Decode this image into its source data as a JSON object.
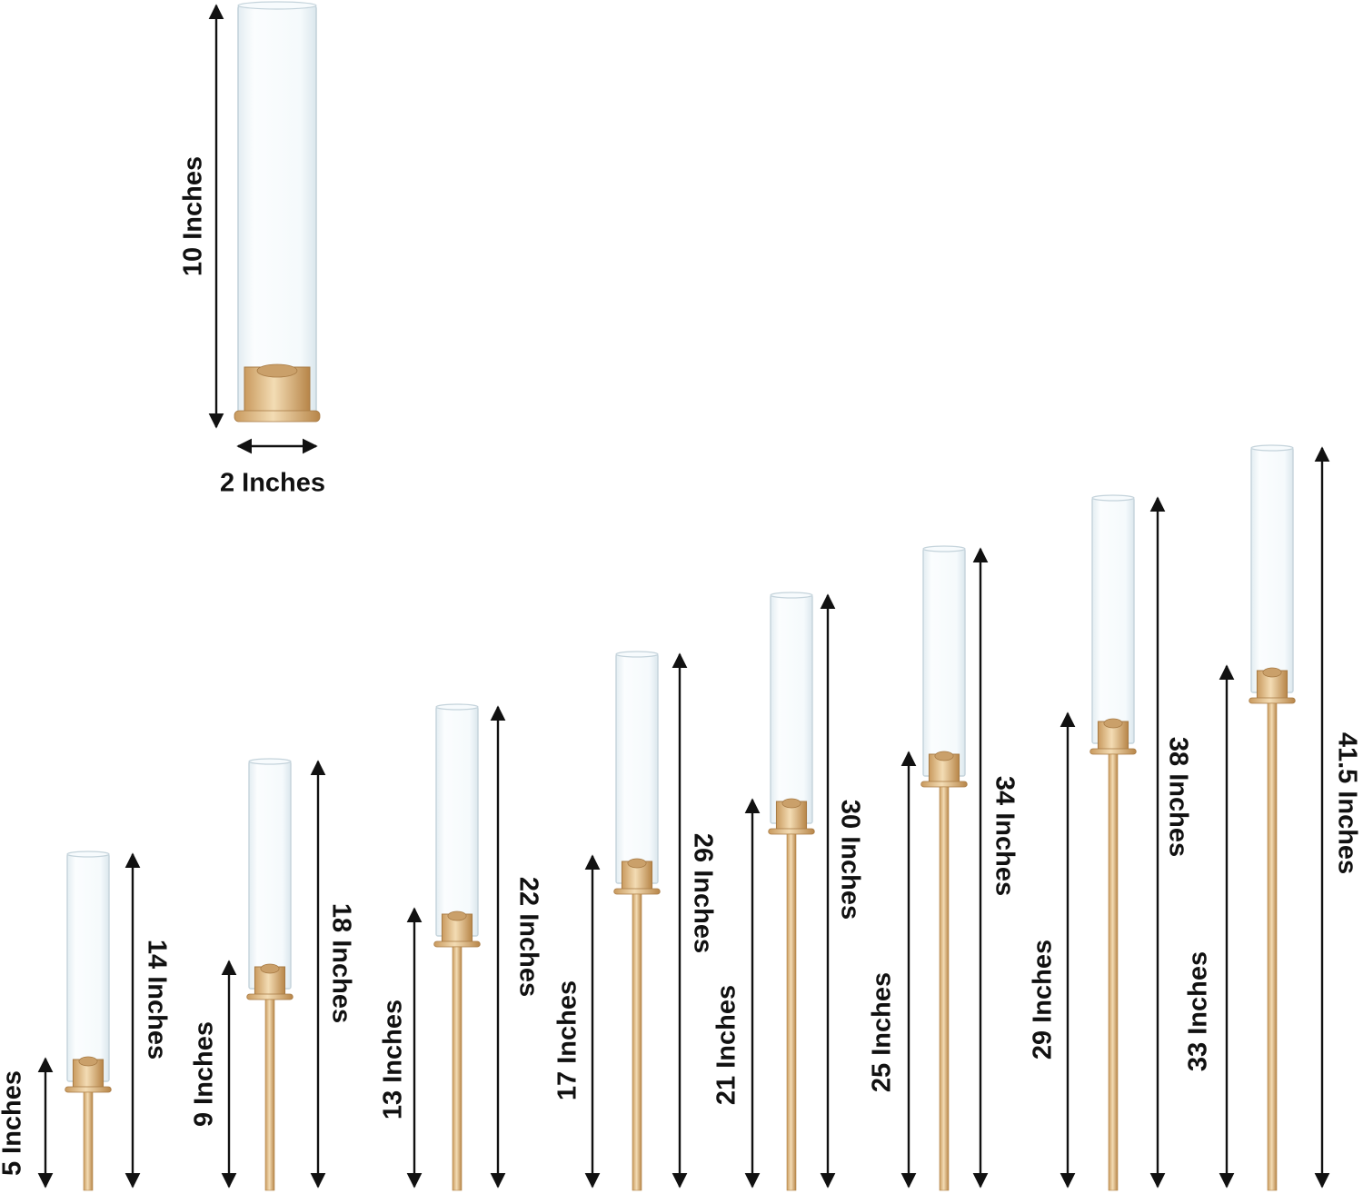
{
  "product": {
    "colors": {
      "gold": "#d9b27c",
      "gold_dark": "#b88a52",
      "glass": "#eef6fa",
      "glass_edge": "#c9d7de",
      "arrow": "#111111"
    }
  },
  "detail": {
    "height_label": "10 Inches",
    "diameter_label": "2 Inches"
  },
  "stands": [
    {
      "base_label": "5 Inches",
      "total_label": "14 Inches"
    },
    {
      "base_label": "9 Inches",
      "total_label": "18 Inches"
    },
    {
      "base_label": "13 Inches",
      "total_label": "22 Inches"
    },
    {
      "base_label": "17 Inches",
      "total_label": "26 Inches"
    },
    {
      "base_label": "21 Inches",
      "total_label": "30 Inches"
    },
    {
      "base_label": "25 Inches",
      "total_label": "34 Inches"
    },
    {
      "base_label": "29 Inches",
      "total_label": "38 Inches"
    },
    {
      "base_label": "33 Inches",
      "total_label": "41.5 Inches"
    }
  ]
}
